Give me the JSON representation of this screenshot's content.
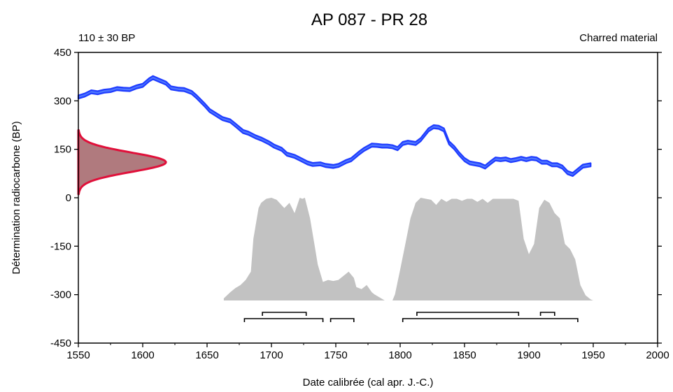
{
  "chart_data": {
    "type": "area",
    "title": "AP 087 - PR 28",
    "subtitle_left": "110 ± 30 BP",
    "subtitle_right": "Charred material",
    "xlabel": "Date calibrée (cal apr. J.-C.)",
    "ylabel": "Détermination radiocarbone (BP)",
    "xlim": [
      1550,
      2000
    ],
    "ylim": [
      -450,
      450
    ],
    "xticks": [
      "1550",
      "1600",
      "1650",
      "1700",
      "1750",
      "1800",
      "1850",
      "1900",
      "1950",
      "2000"
    ],
    "yticks": [
      "450",
      "300",
      "150",
      "0",
      "-150",
      "-300",
      "-450"
    ],
    "grid": false,
    "colors": {
      "calibration_curve": "#1f3cff",
      "calibration_fill": "#4f78ff",
      "measurement": "#e0103a",
      "measurement_fill": "#b07a7e",
      "probability": "#c2c2c2"
    },
    "calibration_curve": {
      "x": [
        1550,
        1555,
        1560,
        1565,
        1570,
        1575,
        1580,
        1585,
        1590,
        1595,
        1600,
        1605,
        1608,
        1612,
        1618,
        1622,
        1628,
        1632,
        1638,
        1642,
        1648,
        1652,
        1658,
        1662,
        1668,
        1672,
        1678,
        1682,
        1688,
        1692,
        1698,
        1702,
        1708,
        1712,
        1718,
        1722,
        1728,
        1732,
        1738,
        1742,
        1748,
        1752,
        1758,
        1762,
        1768,
        1772,
        1778,
        1782,
        1786,
        1790,
        1794,
        1798,
        1802,
        1806,
        1812,
        1816,
        1822,
        1826,
        1830,
        1834,
        1838,
        1842,
        1846,
        1850,
        1854,
        1858,
        1862,
        1866,
        1870,
        1874,
        1878,
        1882,
        1886,
        1890,
        1894,
        1898,
        1902,
        1906,
        1910,
        1914,
        1918,
        1922,
        1926,
        1930,
        1934,
        1938,
        1942,
        1948
      ],
      "y": [
        312,
        318,
        328,
        325,
        330,
        332,
        338,
        336,
        335,
        343,
        348,
        365,
        372,
        365,
        355,
        340,
        336,
        335,
        326,
        312,
        288,
        270,
        255,
        245,
        238,
        225,
        205,
        200,
        188,
        182,
        170,
        160,
        150,
        135,
        128,
        120,
        108,
        103,
        105,
        100,
        97,
        100,
        112,
        118,
        138,
        150,
        163,
        162,
        160,
        160,
        158,
        152,
        168,
        172,
        168,
        180,
        210,
        220,
        218,
        210,
        170,
        155,
        135,
        118,
        108,
        105,
        102,
        95,
        108,
        120,
        118,
        120,
        115,
        118,
        122,
        118,
        122,
        120,
        110,
        110,
        102,
        102,
        95,
        78,
        72,
        85,
        98,
        102
      ]
    },
    "measurement": {
      "center": 110,
      "sigma": 30,
      "label": "110 ± 30 BP"
    },
    "probability_distribution": {
      "x": [
        1663,
        1668,
        1672,
        1676,
        1680,
        1684,
        1686,
        1690,
        1692,
        1696,
        1700,
        1704,
        1710,
        1714,
        1718,
        1722,
        1724,
        1726,
        1730,
        1734,
        1736,
        1740,
        1744,
        1748,
        1752,
        1756,
        1760,
        1764,
        1766,
        1770,
        1774,
        1778,
        1780,
        1784,
        1788,
        1790,
        1794,
        1796,
        1800,
        1804,
        1808,
        1812,
        1816,
        1820,
        1824,
        1828,
        1832,
        1836,
        1840,
        1844,
        1848,
        1852,
        1856,
        1860,
        1864,
        1868,
        1872,
        1876,
        1880,
        1884,
        1888,
        1892,
        1896,
        1900,
        1904,
        1908,
        1912,
        1916,
        1920,
        1924,
        1928,
        1932,
        1936,
        1940,
        1944,
        1948,
        1950
      ],
      "y": [
        0.02,
        0.08,
        0.12,
        0.15,
        0.2,
        0.28,
        0.6,
        0.9,
        0.95,
        0.99,
        1.0,
        0.98,
        0.9,
        0.95,
        0.85,
        1.0,
        0.99,
        1.0,
        0.8,
        0.5,
        0.35,
        0.18,
        0.2,
        0.19,
        0.2,
        0.24,
        0.28,
        0.22,
        0.13,
        0.11,
        0.15,
        0.08,
        0.06,
        0.03,
        0.0,
        0.0,
        0.0,
        0.06,
        0.3,
        0.55,
        0.8,
        0.95,
        1.0,
        0.99,
        0.98,
        0.93,
        0.99,
        0.96,
        0.99,
        0.99,
        0.97,
        0.99,
        0.99,
        0.96,
        0.99,
        0.95,
        0.99,
        0.99,
        0.99,
        0.99,
        0.99,
        0.97,
        0.6,
        0.45,
        0.55,
        0.9,
        0.98,
        0.95,
        0.85,
        0.8,
        0.55,
        0.5,
        0.4,
        0.15,
        0.05,
        0.01,
        0.0
      ]
    },
    "intervals_68": [
      [
        1693,
        1727
      ],
      [
        1813,
        1892
      ],
      [
        1909,
        1920
      ]
    ],
    "intervals_95": [
      [
        1679,
        1740
      ],
      [
        1746,
        1764
      ],
      [
        1802,
        1938
      ]
    ]
  }
}
